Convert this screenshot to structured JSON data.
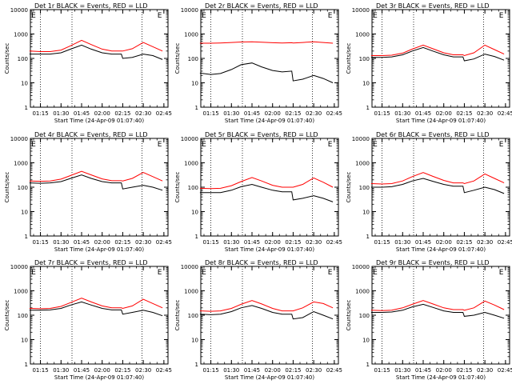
{
  "figure": {
    "x_tick_labels": [
      "01:15",
      "01:30",
      "01:45",
      "02:00",
      "02:15",
      "02:30",
      "02:45"
    ],
    "y_tick_labels": [
      "1",
      "10",
      "100",
      "1000",
      "10000"
    ],
    "x_axis_label": "Start Time (24-Apr-09 01:07:40)",
    "y_axis_label": "Counts/sec",
    "colors": {
      "events": "#000000",
      "lld": "#ff0000",
      "axes": "#000000"
    }
  },
  "chart_data": [
    {
      "type": "line",
      "title": "Det 1r BLACK = Events, RED = LLD",
      "xlabel": "Start Time (24-Apr-09 01:07:40)",
      "ylabel": "Counts/sec",
      "x_ticks": [
        "01:15",
        "01:30",
        "01:45",
        "02:00",
        "02:15",
        "02:30",
        "02:45"
      ],
      "ylim": [
        1,
        10000
      ],
      "yscale": "log",
      "marker_letters": [
        "E",
        "E"
      ],
      "x": [
        "01:07",
        "01:15",
        "01:22",
        "01:30",
        "01:37",
        "01:45",
        "01:52",
        "02:00",
        "02:07",
        "02:14",
        "02:15",
        "02:22",
        "02:30",
        "02:37",
        "02:44"
      ],
      "series": [
        {
          "name": "Events",
          "color": "#000000",
          "values": [
            150,
            150,
            150,
            170,
            240,
            350,
            240,
            170,
            150,
            150,
            100,
            110,
            150,
            130,
            90
          ]
        },
        {
          "name": "LLD",
          "color": "#ff0000",
          "values": [
            200,
            190,
            190,
            220,
            330,
            550,
            370,
            240,
            200,
            200,
            200,
            250,
            450,
            300,
            200
          ]
        }
      ]
    },
    {
      "type": "line",
      "title": "Det 2r BLACK = Events, RED = LLD",
      "xlabel": "Start Time (24-Apr-09 01:07:40)",
      "ylabel": "Counts/sec",
      "x_ticks": [
        "01:15",
        "01:30",
        "01:45",
        "02:00",
        "02:15",
        "02:30",
        "02:45"
      ],
      "ylim": [
        1,
        10000
      ],
      "yscale": "log",
      "marker_letters": [
        "E",
        "E"
      ],
      "x": [
        "01:07",
        "01:15",
        "01:22",
        "01:30",
        "01:37",
        "01:45",
        "01:52",
        "02:00",
        "02:07",
        "02:14",
        "02:15",
        "02:22",
        "02:30",
        "02:37",
        "02:44"
      ],
      "series": [
        {
          "name": "Events",
          "color": "#000000",
          "values": [
            25,
            22,
            24,
            35,
            55,
            65,
            45,
            32,
            28,
            30,
            12,
            14,
            20,
            15,
            10
          ]
        },
        {
          "name": "LLD",
          "color": "#ff0000",
          "values": [
            420,
            420,
            430,
            450,
            470,
            480,
            460,
            440,
            430,
            440,
            430,
            450,
            480,
            450,
            420
          ]
        }
      ]
    },
    {
      "type": "line",
      "title": "Det 3r BLACK = Events, RED = LLD",
      "xlabel": "Start Time (24-Apr-09 01:07:40)",
      "ylabel": "Counts/sec",
      "x_ticks": [
        "01:15",
        "01:30",
        "01:45",
        "02:00",
        "02:15",
        "02:30",
        "02:45"
      ],
      "ylim": [
        1,
        10000
      ],
      "yscale": "log",
      "marker_letters": [
        "E",
        "E"
      ],
      "x": [
        "01:07",
        "01:15",
        "01:22",
        "01:30",
        "01:37",
        "01:45",
        "01:52",
        "02:00",
        "02:07",
        "02:14",
        "02:15",
        "02:22",
        "02:30",
        "02:37",
        "02:44"
      ],
      "series": [
        {
          "name": "Events",
          "color": "#000000",
          "values": [
            110,
            110,
            115,
            140,
            200,
            280,
            200,
            140,
            115,
            115,
            80,
            95,
            150,
            120,
            85
          ]
        },
        {
          "name": "LLD",
          "color": "#ff0000",
          "values": [
            130,
            130,
            135,
            165,
            240,
            350,
            250,
            170,
            140,
            140,
            130,
            170,
            350,
            230,
            150
          ]
        }
      ]
    },
    {
      "type": "line",
      "title": "Det 4r BLACK = Events, RED = LLD",
      "xlabel": "Start Time (24-Apr-09 01:07:40)",
      "ylabel": "Counts/sec",
      "x_ticks": [
        "01:15",
        "01:30",
        "01:45",
        "02:00",
        "02:15",
        "02:30",
        "02:45"
      ],
      "ylim": [
        1,
        10000
      ],
      "yscale": "log",
      "marker_letters": [
        "E",
        "E"
      ],
      "x": [
        "01:07",
        "01:15",
        "01:22",
        "01:30",
        "01:37",
        "01:45",
        "01:52",
        "02:00",
        "02:07",
        "02:14",
        "02:15",
        "02:22",
        "02:30",
        "02:37",
        "02:44"
      ],
      "series": [
        {
          "name": "Events",
          "color": "#000000",
          "values": [
            150,
            145,
            150,
            170,
            230,
            320,
            230,
            170,
            150,
            150,
            85,
            100,
            120,
            100,
            75
          ]
        },
        {
          "name": "LLD",
          "color": "#ff0000",
          "values": [
            180,
            175,
            180,
            215,
            300,
            450,
            320,
            220,
            185,
            185,
            180,
            230,
            400,
            270,
            180
          ]
        }
      ]
    },
    {
      "type": "line",
      "title": "Det 5r BLACK = Events, RED = LLD",
      "xlabel": "Start Time (24-Apr-09 01:07:40)",
      "ylabel": "Counts/sec",
      "x_ticks": [
        "01:15",
        "01:30",
        "01:45",
        "02:00",
        "02:15",
        "02:30",
        "02:45"
      ],
      "ylim": [
        1,
        10000
      ],
      "yscale": "log",
      "marker_letters": [
        "E",
        "E"
      ],
      "x": [
        "01:07",
        "01:15",
        "01:22",
        "01:30",
        "01:37",
        "01:45",
        "01:52",
        "02:00",
        "02:07",
        "02:14",
        "02:15",
        "02:22",
        "02:30",
        "02:37",
        "02:44"
      ],
      "series": [
        {
          "name": "Events",
          "color": "#000000",
          "values": [
            60,
            60,
            60,
            75,
            105,
            130,
            100,
            75,
            65,
            65,
            30,
            35,
            45,
            35,
            25
          ]
        },
        {
          "name": "LLD",
          "color": "#ff0000",
          "values": [
            90,
            88,
            90,
            115,
            170,
            250,
            180,
            120,
            100,
            100,
            100,
            130,
            240,
            160,
            100
          ]
        }
      ]
    },
    {
      "type": "line",
      "title": "Det 6r BLACK = Events, RED = LLD",
      "xlabel": "Start Time (24-Apr-09 01:07:40)",
      "ylabel": "Counts/sec",
      "x_ticks": [
        "01:15",
        "01:30",
        "01:45",
        "02:00",
        "02:15",
        "02:30",
        "02:45"
      ],
      "ylim": [
        1,
        10000
      ],
      "yscale": "log",
      "marker_letters": [
        "E",
        "E"
      ],
      "x": [
        "01:07",
        "01:15",
        "01:22",
        "01:30",
        "01:37",
        "01:45",
        "01:52",
        "02:00",
        "02:07",
        "02:14",
        "02:15",
        "02:22",
        "02:30",
        "02:37",
        "02:44"
      ],
      "series": [
        {
          "name": "Events",
          "color": "#000000",
          "values": [
            100,
            100,
            105,
            130,
            180,
            230,
            175,
            130,
            110,
            110,
            60,
            75,
            100,
            80,
            55
          ]
        },
        {
          "name": "LLD",
          "color": "#ff0000",
          "values": [
            140,
            135,
            140,
            180,
            270,
            400,
            280,
            190,
            150,
            150,
            140,
            180,
            350,
            230,
            150
          ]
        }
      ]
    },
    {
      "type": "line",
      "title": "Det 7r BLACK = Events, RED = LLD",
      "xlabel": "Start Time (24-Apr-09 01:07:40)",
      "ylabel": "Counts/sec",
      "x_ticks": [
        "01:15",
        "01:30",
        "01:45",
        "02:00",
        "02:15",
        "02:30",
        "02:45"
      ],
      "ylim": [
        1,
        10000
      ],
      "yscale": "log",
      "marker_letters": [
        "E",
        "E"
      ],
      "x": [
        "01:07",
        "01:15",
        "01:22",
        "01:30",
        "01:37",
        "01:45",
        "01:52",
        "02:00",
        "02:07",
        "02:14",
        "02:15",
        "02:22",
        "02:30",
        "02:37",
        "02:44"
      ],
      "series": [
        {
          "name": "Events",
          "color": "#000000",
          "values": [
            160,
            160,
            165,
            190,
            260,
            350,
            260,
            190,
            165,
            165,
            110,
            130,
            160,
            130,
            95
          ]
        },
        {
          "name": "LLD",
          "color": "#ff0000",
          "values": [
            190,
            185,
            190,
            230,
            330,
            500,
            350,
            240,
            200,
            200,
            190,
            240,
            450,
            300,
            200
          ]
        }
      ]
    },
    {
      "type": "line",
      "title": "Det 8r BLACK = Events, RED = LLD",
      "xlabel": "Start Time (24-Apr-09 01:07:40)",
      "ylabel": "Counts/sec",
      "x_ticks": [
        "01:15",
        "01:30",
        "01:45",
        "02:00",
        "02:15",
        "02:30",
        "02:45"
      ],
      "ylim": [
        1,
        10000
      ],
      "yscale": "log",
      "marker_letters": [
        "E",
        "E"
      ],
      "x": [
        "01:07",
        "01:15",
        "01:22",
        "01:30",
        "01:37",
        "01:45",
        "01:52",
        "02:00",
        "02:07",
        "02:14",
        "02:15",
        "02:22",
        "02:30",
        "02:37",
        "02:44"
      ],
      "series": [
        {
          "name": "Events",
          "color": "#000000",
          "values": [
            110,
            105,
            110,
            140,
            200,
            250,
            190,
            130,
            110,
            110,
            70,
            80,
            140,
            100,
            70
          ]
        },
        {
          "name": "LLD",
          "color": "#ff0000",
          "values": [
            150,
            145,
            150,
            190,
            280,
            400,
            290,
            190,
            150,
            150,
            150,
            200,
            350,
            300,
            200
          ]
        }
      ]
    },
    {
      "type": "line",
      "title": "Det 9r BLACK = Events, RED = LLD",
      "xlabel": "Start Time (24-Apr-09 01:07:40)",
      "ylabel": "Counts/sec",
      "x_ticks": [
        "01:15",
        "01:30",
        "01:45",
        "02:00",
        "02:15",
        "02:30",
        "02:45"
      ],
      "ylim": [
        1,
        10000
      ],
      "yscale": "log",
      "marker_letters": [
        "E",
        "E"
      ],
      "x": [
        "01:07",
        "01:15",
        "01:22",
        "01:30",
        "01:37",
        "01:45",
        "01:52",
        "02:00",
        "02:07",
        "02:14",
        "02:15",
        "02:22",
        "02:30",
        "02:37",
        "02:44"
      ],
      "series": [
        {
          "name": "Events",
          "color": "#000000",
          "values": [
            130,
            130,
            135,
            160,
            220,
            280,
            210,
            150,
            130,
            130,
            90,
            100,
            130,
            100,
            75
          ]
        },
        {
          "name": "LLD",
          "color": "#ff0000",
          "values": [
            160,
            155,
            160,
            200,
            280,
            400,
            290,
            200,
            170,
            170,
            160,
            200,
            380,
            260,
            170
          ]
        }
      ]
    }
  ]
}
